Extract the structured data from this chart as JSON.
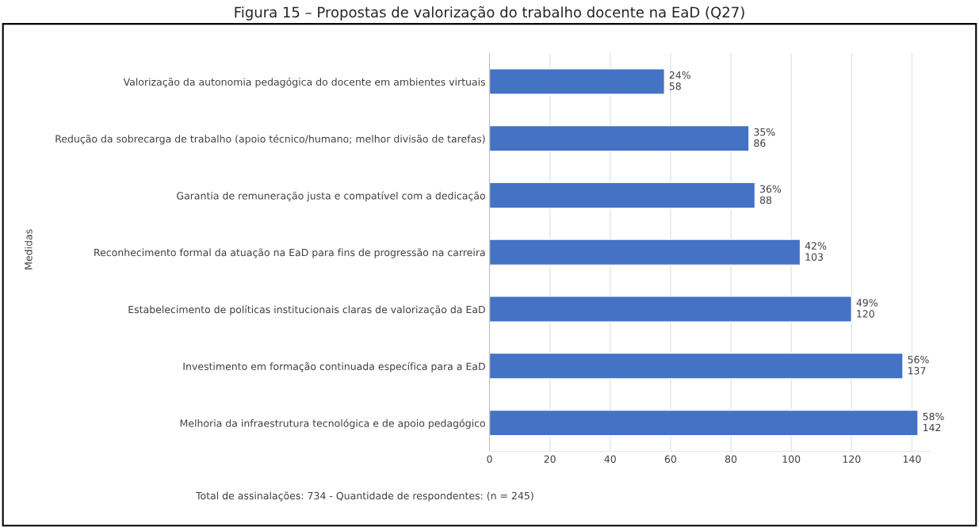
{
  "chart_data": {
    "type": "bar",
    "orientation": "horizontal",
    "title": "Figura 15 – Propostas de valorização do trabalho docente na EaD (Q27)",
    "ylabel": "Medidas",
    "categories": [
      "Valorização da autonomia pedagógica do docente em ambientes virtuais",
      "Redução da sobrecarga de trabalho (apoio técnico/humano; melhor divisão de tarefas)",
      "Garantia de remuneração justa e compatível com a dedicação",
      "Reconhecimento formal da atuação na EaD para fins de progressão na carreira",
      "Estabelecimento de políticas institucionais claras de valorização da EaD",
      "Investimento em formação continuada específica para a EaD",
      "Melhoria da infraestrutura tecnológica e de apoio pedagógico"
    ],
    "values": [
      58,
      86,
      88,
      103,
      120,
      137,
      142
    ],
    "value_labels": [
      "24%\n58",
      "35%\n86",
      "36%\n88",
      "42%\n103",
      "49%\n120",
      "56%\n137",
      "58%\n142"
    ],
    "color": "#4472c4",
    "xlim": [
      0,
      146
    ],
    "xticks": [
      0,
      20,
      40,
      60,
      80,
      100,
      120,
      140
    ],
    "grid": "x",
    "annotations": [
      "Total de assinalações: 734 - Quantidade de respondentes: (n = 245)"
    ]
  }
}
